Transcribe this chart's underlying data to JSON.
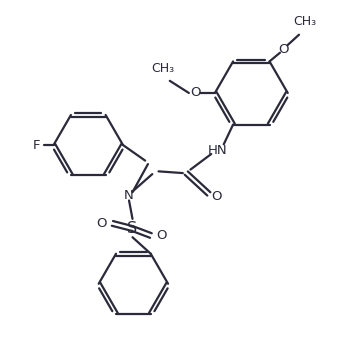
{
  "bg_color": "#ffffff",
  "line_color": "#2a2a3a",
  "line_width": 1.6,
  "font_size": 9.5,
  "figsize": [
    3.5,
    3.58
  ],
  "dpi": 100,
  "xlim": [
    0,
    10
  ],
  "ylim": [
    0,
    10.24
  ]
}
